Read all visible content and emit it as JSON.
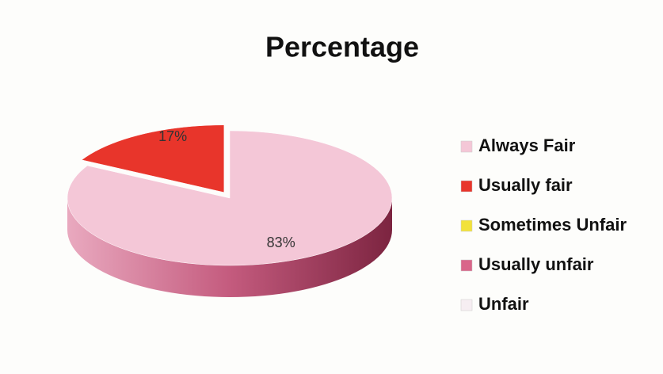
{
  "chart_data": {
    "type": "pie",
    "title": "Percentage",
    "categories": [
      "Always Fair",
      "Usually fair",
      "Sometimes Unfair",
      "Usually unfair",
      "Unfair"
    ],
    "values": [
      83,
      17,
      0,
      0,
      0
    ],
    "value_labels": [
      "83%",
      "17%",
      null,
      null,
      null
    ],
    "colors": [
      "#f4c7d7",
      "#e8352b",
      "#f2e23a",
      "#d9668a",
      "#f6eef2"
    ],
    "legend": "right"
  }
}
